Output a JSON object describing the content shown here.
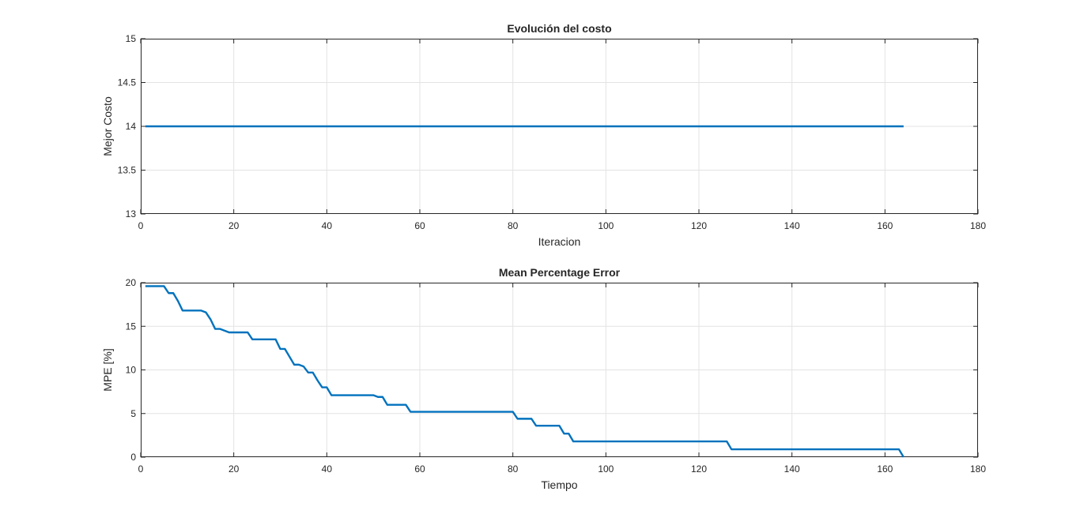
{
  "chart_data": [
    {
      "type": "line",
      "title": "Evolución del costo",
      "xlabel": "Iteracion",
      "ylabel": "Mejor Costo",
      "xlim": [
        0,
        180
      ],
      "ylim": [
        13,
        15
      ],
      "xticks": [
        0,
        20,
        40,
        60,
        80,
        100,
        120,
        140,
        160,
        180
      ],
      "yticks": [
        13,
        13.5,
        14,
        14.5,
        15
      ],
      "ytick_labels": [
        "13",
        "13.5",
        "14",
        "14.5",
        "15"
      ],
      "grid": true,
      "series": [
        {
          "color": "#0072bd",
          "x": [
            1,
            164
          ],
          "y": [
            14,
            14
          ]
        }
      ]
    },
    {
      "type": "line",
      "title": "Mean Percentage Error",
      "xlabel": "Tiempo",
      "ylabel": "MPE [%]",
      "xlim": [
        0,
        180
      ],
      "ylim": [
        0,
        20
      ],
      "xticks": [
        0,
        20,
        40,
        60,
        80,
        100,
        120,
        140,
        160,
        180
      ],
      "yticks": [
        0,
        5,
        10,
        15,
        20
      ],
      "ytick_labels": [
        "0",
        "5",
        "10",
        "15",
        "20"
      ],
      "grid": true,
      "series": [
        {
          "color": "#0072bd",
          "x": [
            1,
            5,
            6,
            7,
            8,
            9,
            10,
            13,
            14,
            15,
            16,
            17,
            18,
            19,
            20,
            23,
            24,
            25,
            29,
            30,
            31,
            32,
            33,
            34,
            35,
            36,
            37,
            38,
            39,
            40,
            41,
            50,
            51,
            52,
            53,
            54,
            57,
            58,
            59,
            80,
            81,
            84,
            85,
            89,
            90,
            91,
            92,
            93,
            126,
            127,
            163,
            164
          ],
          "y": [
            19.6,
            19.6,
            18.8,
            18.8,
            17.9,
            16.8,
            16.8,
            16.8,
            16.6,
            15.8,
            14.7,
            14.7,
            14.5,
            14.3,
            14.3,
            14.3,
            13.5,
            13.5,
            13.5,
            12.4,
            12.4,
            11.5,
            10.6,
            10.6,
            10.4,
            9.7,
            9.7,
            8.8,
            8.0,
            8.0,
            7.1,
            7.1,
            6.9,
            6.9,
            6.0,
            6.0,
            6.0,
            5.2,
            5.2,
            5.2,
            4.4,
            4.4,
            3.6,
            3.6,
            3.6,
            2.7,
            2.7,
            1.8,
            1.8,
            0.9,
            0.9,
            0.0
          ]
        }
      ]
    }
  ]
}
